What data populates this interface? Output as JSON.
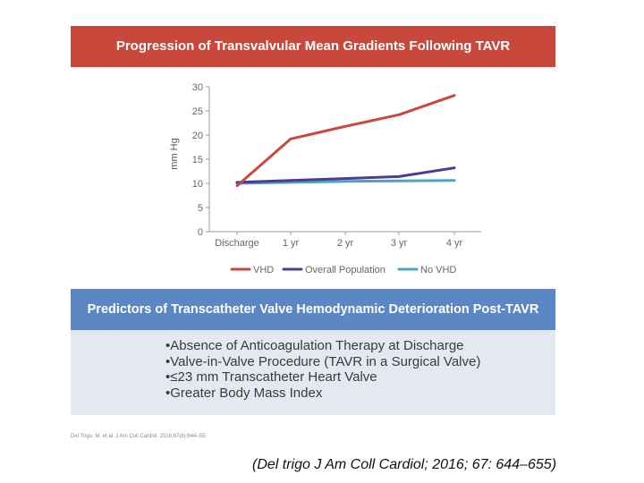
{
  "figure": {
    "title": "Progression of Transvalvular Mean Gradients Following TAVR"
  },
  "chart_data": {
    "type": "line",
    "categories": [
      "Discharge",
      "1 yr",
      "2 yr",
      "3 yr",
      "4 yr"
    ],
    "ylabel": "mm Hg",
    "xlabel": "",
    "ylim": [
      0,
      30
    ],
    "yticks": [
      "0",
      "5",
      "10",
      "15",
      "20",
      "25",
      "30"
    ],
    "grid": false,
    "legend_position": "bottom",
    "series": [
      {
        "name": "VHD",
        "color": "#c8483b",
        "values": [
          9.5,
          19.2,
          21.8,
          24.2,
          28.2
        ]
      },
      {
        "name": "Overall Population",
        "color": "#4a3d8f",
        "values": [
          10.2,
          10.6,
          11.0,
          11.4,
          13.2
        ]
      },
      {
        "name": "No VHD",
        "color": "#4aa3c3",
        "values": [
          10.0,
          10.2,
          10.4,
          10.5,
          10.6
        ]
      }
    ]
  },
  "predictors": {
    "title": "Predictors of Transcatheter Valve Hemodynamic Deterioration Post-TAVR",
    "items": [
      "•Absence of Anticoagulation Therapy at Discharge",
      "•Valve-in-Valve Procedure (TAVR in a Surgical Valve)",
      "•≤23 mm Transcatheter Heart Valve",
      "•Greater Body Mass Index"
    ]
  },
  "source_note": "Del Trigo, M. et al. J Am Coll Cardiol. 2016;67(6):644–55.",
  "citation": "(Del trigo J Am Coll Cardiol; 2016; 67: 644–655)"
}
